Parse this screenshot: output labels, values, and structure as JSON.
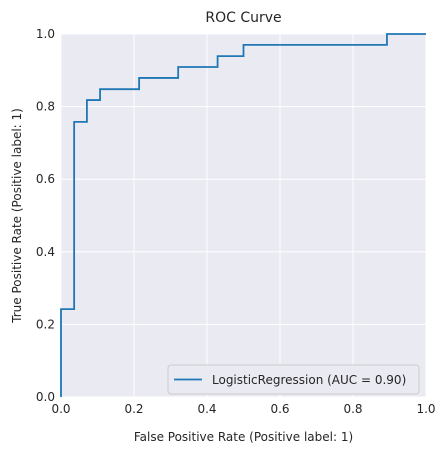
{
  "chart_data": {
    "type": "line",
    "title": "ROC Curve",
    "xlabel": "False Positive Rate (Positive label: 1)",
    "ylabel": "True Positive Rate (Positive label: 1)",
    "xlim": [
      0,
      1
    ],
    "ylim": [
      0,
      1
    ],
    "xticks": [
      "0.0",
      "0.2",
      "0.4",
      "0.6",
      "0.8",
      "1.0"
    ],
    "yticks": [
      "0.0",
      "0.2",
      "0.4",
      "0.6",
      "0.8",
      "1.0"
    ],
    "grid": true,
    "legend_position": "lower-right",
    "series": [
      {
        "name": "LogisticRegression (AUC = 0.90)",
        "color": "#1f77b4",
        "x": [
          0.0,
          0.0,
          0.0,
          0.036,
          0.036,
          0.071,
          0.071,
          0.107,
          0.107,
          0.214,
          0.214,
          0.321,
          0.321,
          0.429,
          0.429,
          0.5,
          0.5,
          0.893,
          0.893,
          1.0
        ],
        "y": [
          0.0,
          0.0,
          0.242,
          0.242,
          0.758,
          0.758,
          0.818,
          0.818,
          0.848,
          0.848,
          0.879,
          0.879,
          0.909,
          0.909,
          0.939,
          0.939,
          0.97,
          0.97,
          1.0,
          1.0
        ]
      }
    ],
    "colors": {
      "plot_background": "#eaeaf2",
      "grid": "#ffffff",
      "text": "#262626"
    }
  }
}
